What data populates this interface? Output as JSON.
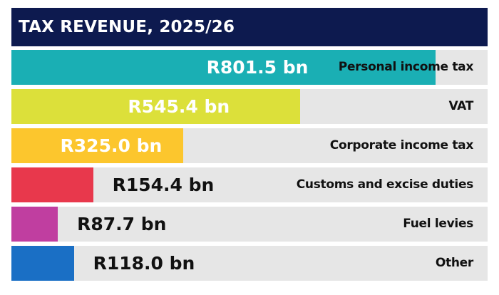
{
  "chart_data": {
    "type": "bar",
    "orientation": "horizontal",
    "title": "TAX REVENUE, 2025/26",
    "categories": [
      "Personal income tax",
      "VAT",
      "Corporate income tax",
      "Customs and excise duties",
      "Fuel levies",
      "Other"
    ],
    "values": [
      801.5,
      545.4,
      325.0,
      154.4,
      87.7,
      118.0
    ],
    "value_labels": [
      "R801.5 bn",
      "R545.4 bn",
      "R325.0 bn",
      "R154.4 bn",
      "R87.7 bn",
      "R118.0 bn"
    ],
    "colors": [
      "#1aafb4",
      "#dce03a",
      "#fcc62d",
      "#e8384c",
      "#c03ea0",
      "#1a6fc5"
    ],
    "xlim": [
      0,
      900
    ],
    "unit": "R bn",
    "grid": false,
    "legend": "none"
  }
}
